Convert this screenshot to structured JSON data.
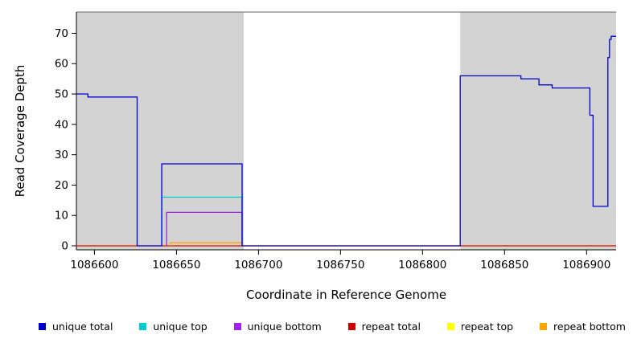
{
  "figure": {
    "background": "#ffffff"
  },
  "chart_data": {
    "type": "line",
    "title": "",
    "xlabel": "Coordinate in Reference Genome",
    "ylabel": "Read Coverage Depth",
    "xlim": [
      1086589,
      1086918
    ],
    "ylim": [
      0,
      77
    ],
    "xticks": [
      1086600,
      1086650,
      1086700,
      1086750,
      1086800,
      1086850,
      1086900
    ],
    "yticks": [
      0,
      10,
      20,
      30,
      40,
      50,
      60,
      70
    ],
    "grid": false,
    "legend_position": "bottom",
    "panel_color": "#d3d3d3",
    "top_border_color": "#808080",
    "axis_color": "#000000",
    "shaded_regions": [
      {
        "x0": 1086589,
        "x1": 1086691,
        "label": "shaded-region-left"
      },
      {
        "x0": 1086823,
        "x1": 1086918,
        "label": "shaded-region-right"
      }
    ],
    "series": [
      {
        "name": "repeat top",
        "color": "#FFFF00",
        "points": [
          [
            1086589,
            0
          ],
          [
            1086918,
            0
          ]
        ]
      },
      {
        "name": "repeat total",
        "color": "#CD0000",
        "points": [
          [
            1086589,
            0
          ],
          [
            1086918,
            0
          ]
        ]
      },
      {
        "name": "unique top",
        "color": "#00CED1",
        "points": [
          [
            1086641,
            0
          ],
          [
            1086641,
            16
          ],
          [
            1086690,
            16
          ],
          [
            1086690,
            0
          ]
        ]
      },
      {
        "name": "unique bottom",
        "color": "#A020F0",
        "points": [
          [
            1086644,
            0
          ],
          [
            1086644,
            11
          ],
          [
            1086690,
            11
          ],
          [
            1086690,
            0
          ]
        ]
      },
      {
        "name": "repeat bottom",
        "color": "#FFA500",
        "points": [
          [
            1086646,
            0
          ],
          [
            1086646,
            1
          ],
          [
            1086690,
            1
          ],
          [
            1086690,
            0
          ]
        ]
      },
      {
        "name": "unique total",
        "color": "#0000CD",
        "points": [
          [
            1086589,
            50
          ],
          [
            1086596,
            50
          ],
          [
            1086596,
            49
          ],
          [
            1086626,
            49
          ],
          [
            1086626,
            0
          ],
          [
            1086641,
            0
          ],
          [
            1086641,
            27
          ],
          [
            1086690,
            27
          ],
          [
            1086690,
            0
          ],
          [
            1086823,
            0
          ],
          [
            1086823,
            56
          ],
          [
            1086860,
            56
          ],
          [
            1086860,
            55
          ],
          [
            1086871,
            55
          ],
          [
            1086871,
            53
          ],
          [
            1086879,
            53
          ],
          [
            1086879,
            52
          ],
          [
            1086902,
            52
          ],
          [
            1086902,
            43
          ],
          [
            1086904,
            43
          ],
          [
            1086904,
            13
          ],
          [
            1086913,
            13
          ],
          [
            1086913,
            62
          ],
          [
            1086914,
            62
          ],
          [
            1086914,
            68
          ],
          [
            1086915,
            68
          ],
          [
            1086915,
            69
          ],
          [
            1086918,
            69
          ]
        ]
      }
    ],
    "legend": [
      {
        "label": "unique total",
        "color": "#0000CD"
      },
      {
        "label": "unique top",
        "color": "#00CED1"
      },
      {
        "label": "unique bottom",
        "color": "#A020F0"
      },
      {
        "label": "repeat total",
        "color": "#CD0000"
      },
      {
        "label": "repeat top",
        "color": "#FFFF00"
      },
      {
        "label": "repeat bottom",
        "color": "#FFA500"
      }
    ]
  }
}
